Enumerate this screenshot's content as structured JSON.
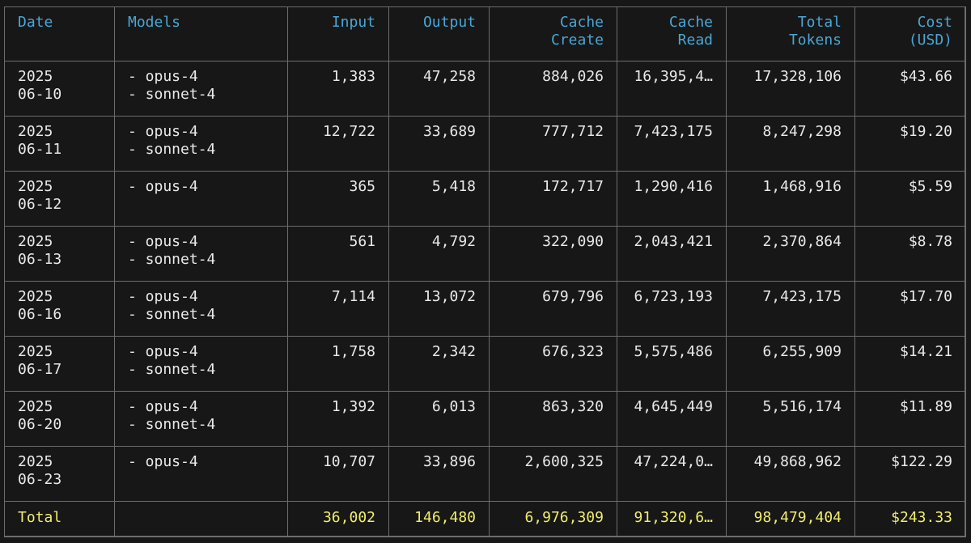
{
  "colors": {
    "background": "#171717",
    "border": "#6d6d6d",
    "header_text": "#4aa6d6",
    "body_text": "#e9e9e9",
    "total_text": "#f1ed6c"
  },
  "headers": {
    "date": "Date",
    "models": "Models",
    "input": "Input",
    "output": "Output",
    "cache_create_1": "Cache",
    "cache_create_2": "Create",
    "cache_read_1": "Cache",
    "cache_read_2": "Read",
    "total_tokens_1": "Total",
    "total_tokens_2": "Tokens",
    "cost_1": "Cost",
    "cost_2": "(USD)"
  },
  "rows": [
    {
      "year": "2025",
      "day": "06-10",
      "model_1": "- opus-4",
      "model_2": "- sonnet-4",
      "input": "1,383",
      "output": "47,258",
      "cache_create": "884,026",
      "cache_read": "16,395,4…",
      "total_tokens": "17,328,106",
      "cost": "$43.66"
    },
    {
      "year": "2025",
      "day": "06-11",
      "model_1": "- opus-4",
      "model_2": "- sonnet-4",
      "input": "12,722",
      "output": "33,689",
      "cache_create": "777,712",
      "cache_read": "7,423,175",
      "total_tokens": "8,247,298",
      "cost": "$19.20"
    },
    {
      "year": "2025",
      "day": "06-12",
      "model_1": "- opus-4",
      "model_2": "",
      "input": "365",
      "output": "5,418",
      "cache_create": "172,717",
      "cache_read": "1,290,416",
      "total_tokens": "1,468,916",
      "cost": "$5.59"
    },
    {
      "year": "2025",
      "day": "06-13",
      "model_1": "- opus-4",
      "model_2": "- sonnet-4",
      "input": "561",
      "output": "4,792",
      "cache_create": "322,090",
      "cache_read": "2,043,421",
      "total_tokens": "2,370,864",
      "cost": "$8.78"
    },
    {
      "year": "2025",
      "day": "06-16",
      "model_1": "- opus-4",
      "model_2": "- sonnet-4",
      "input": "7,114",
      "output": "13,072",
      "cache_create": "679,796",
      "cache_read": "6,723,193",
      "total_tokens": "7,423,175",
      "cost": "$17.70"
    },
    {
      "year": "2025",
      "day": "06-17",
      "model_1": "- opus-4",
      "model_2": "- sonnet-4",
      "input": "1,758",
      "output": "2,342",
      "cache_create": "676,323",
      "cache_read": "5,575,486",
      "total_tokens": "6,255,909",
      "cost": "$14.21"
    },
    {
      "year": "2025",
      "day": "06-20",
      "model_1": "- opus-4",
      "model_2": "- sonnet-4",
      "input": "1,392",
      "output": "6,013",
      "cache_create": "863,320",
      "cache_read": "4,645,449",
      "total_tokens": "5,516,174",
      "cost": "$11.89"
    },
    {
      "year": "2025",
      "day": "06-23",
      "model_1": "- opus-4",
      "model_2": "",
      "input": "10,707",
      "output": "33,896",
      "cache_create": "2,600,325",
      "cache_read": "47,224,0…",
      "total_tokens": "49,868,962",
      "cost": "$122.29"
    }
  ],
  "total": {
    "label": "Total",
    "models": "",
    "input": "36,002",
    "output": "146,480",
    "cache_create": "6,976,309",
    "cache_read": "91,320,6…",
    "total_tokens": "98,479,404",
    "cost": "$243.33"
  }
}
